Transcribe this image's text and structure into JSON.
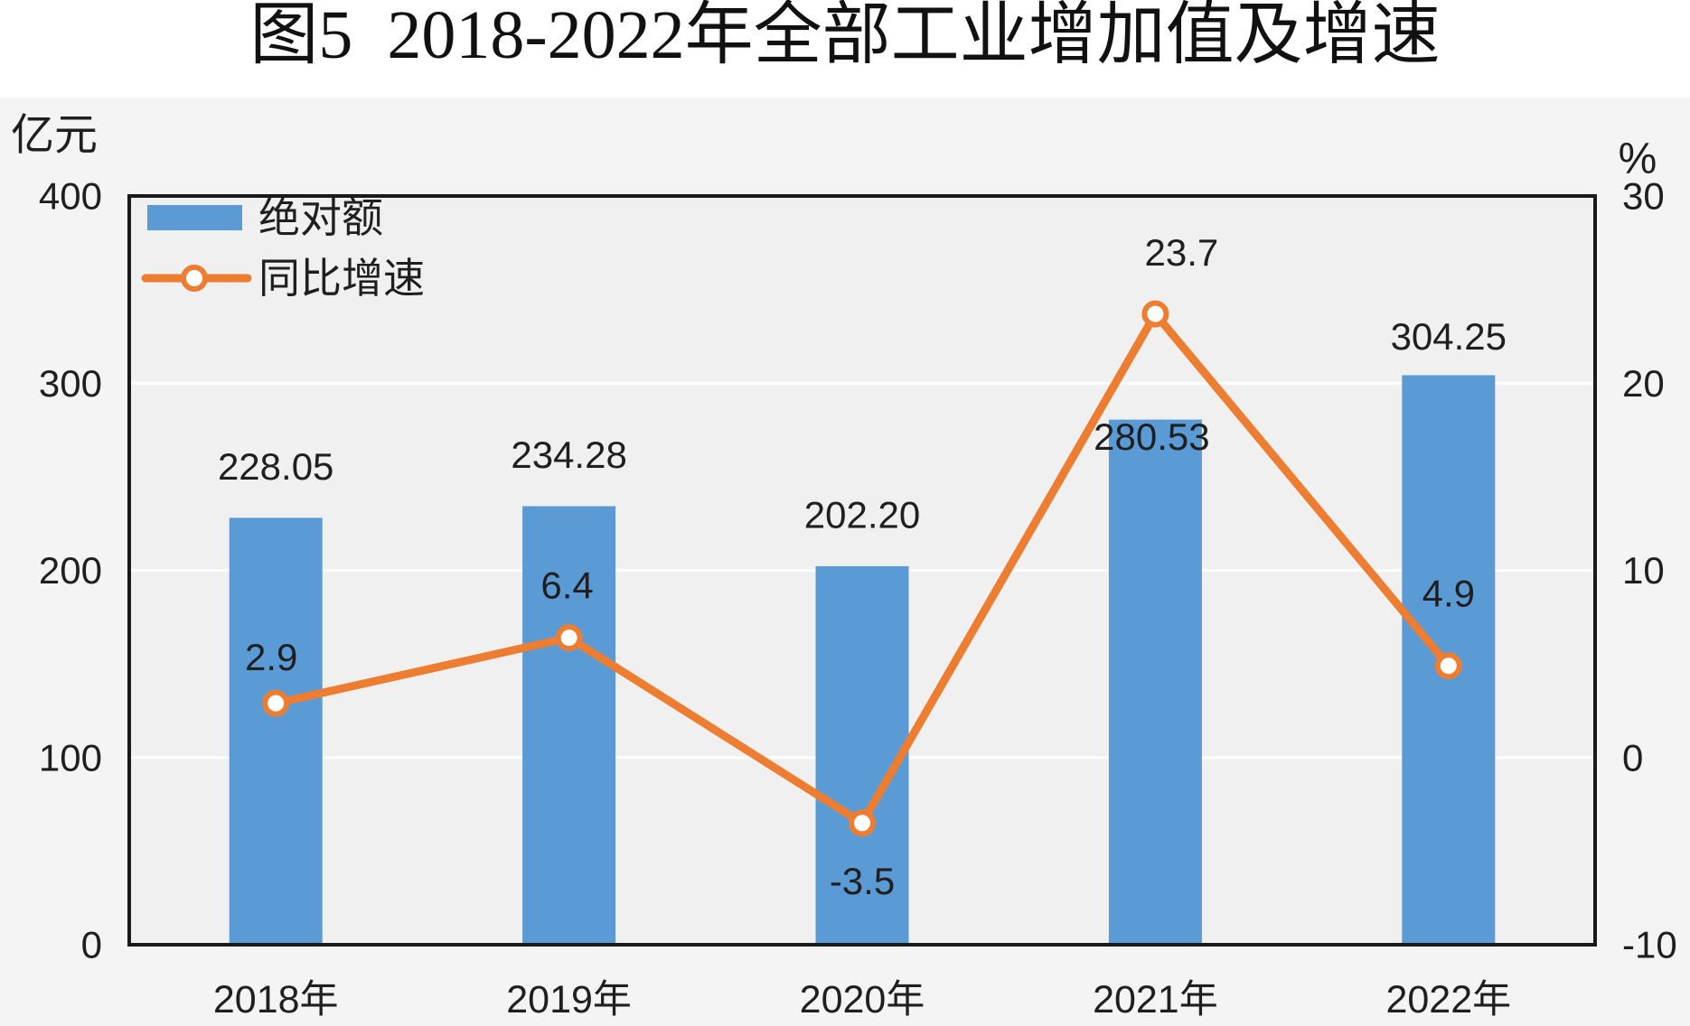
{
  "chart_data": {
    "type": "bar",
    "title": "图5  2018-2022年全部工业增加值及增速",
    "categories": [
      "2018年",
      "2019年",
      "2020年",
      "2021年",
      "2022年"
    ],
    "series": [
      {
        "name": "绝对额",
        "type": "bar",
        "axis": "left",
        "values": [
          228.05,
          234.28,
          202.2,
          280.53,
          304.25
        ],
        "color": "#5b9bd5"
      },
      {
        "name": "同比增速",
        "type": "line",
        "axis": "right",
        "values": [
          2.9,
          6.4,
          -3.5,
          23.7,
          4.9
        ],
        "color": "#ed7d31"
      }
    ],
    "y_left": {
      "unit": "亿元",
      "ticks": [
        0,
        100,
        200,
        300,
        400
      ],
      "ylim": [
        0,
        400
      ]
    },
    "y_right": {
      "unit": "%",
      "ticks": [
        -10,
        0,
        10,
        20,
        30
      ],
      "ylim": [
        -10,
        30
      ]
    },
    "grid": true,
    "legend": "top-left"
  }
}
